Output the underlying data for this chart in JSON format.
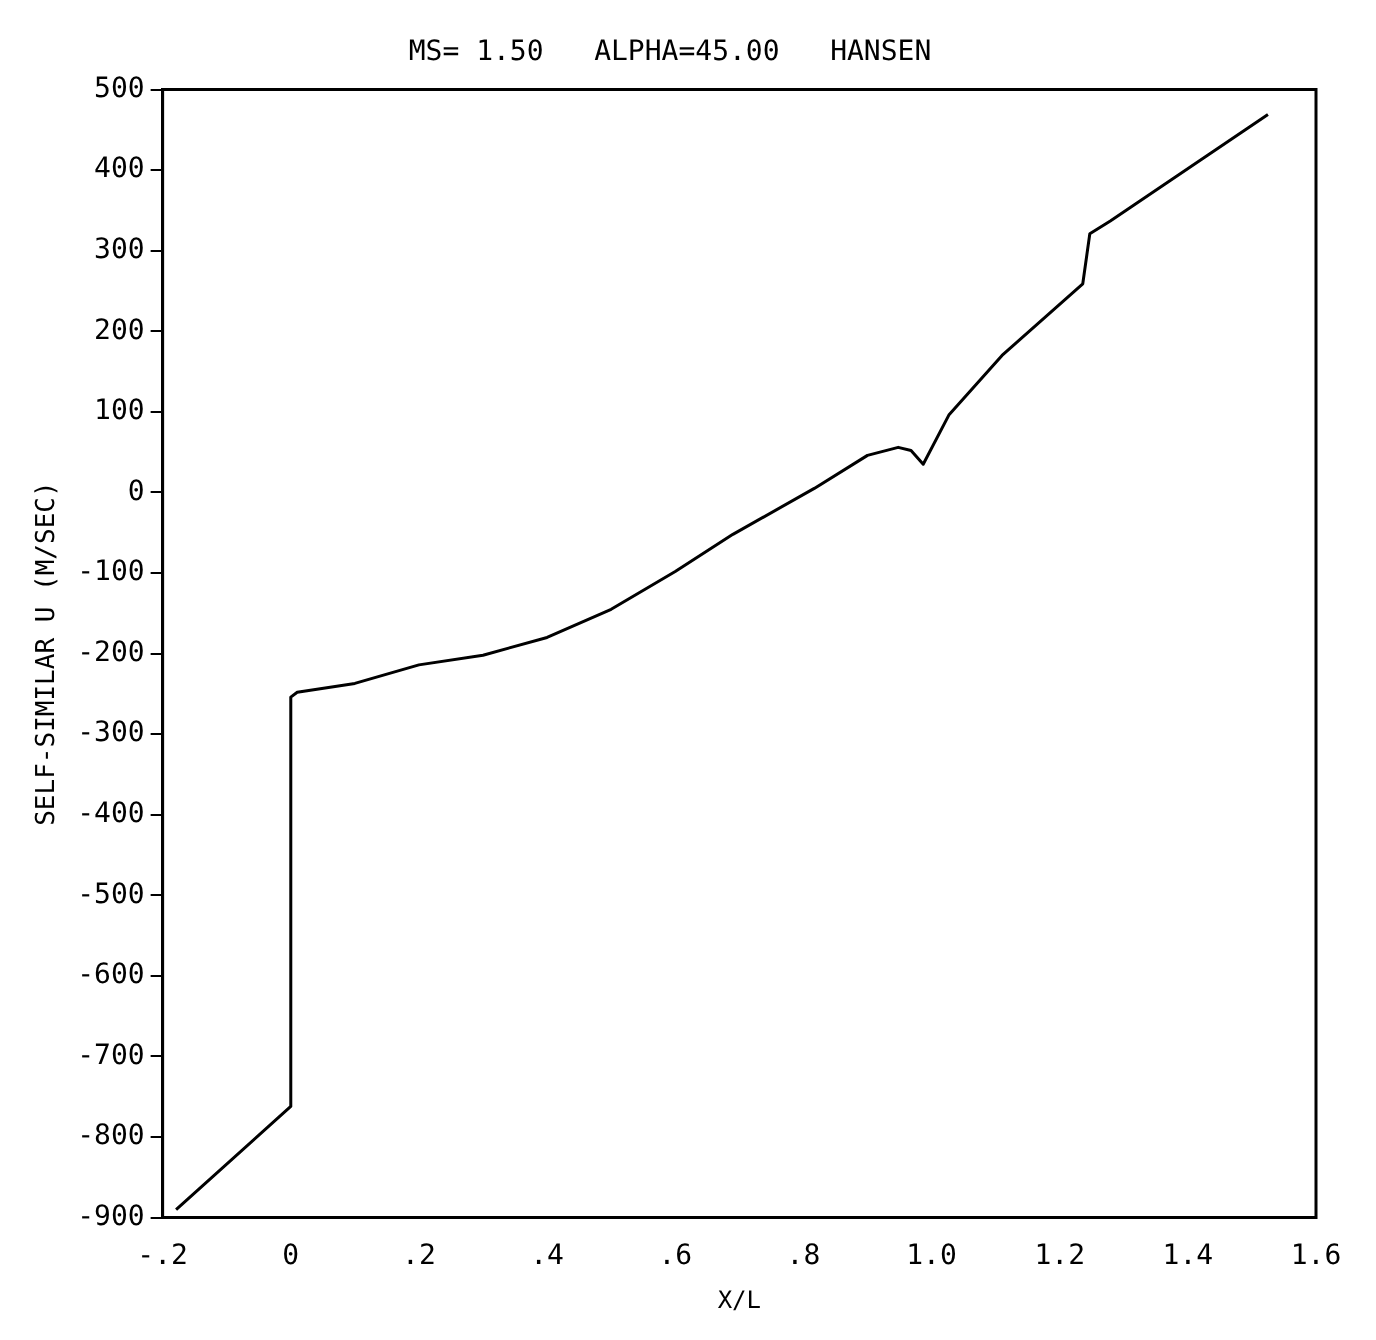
{
  "chart_data": {
    "type": "line",
    "title": "MS= 1.50   ALPHA=45.00   HANSEN",
    "xlabel": "X/L",
    "ylabel": "SELF-SIMILAR U (M/SEC)",
    "x": [
      -0.179,
      0,
      0,
      0.01,
      0.1,
      0.2,
      0.3,
      0.4,
      0.5,
      0.6,
      0.69,
      0.817,
      0.9,
      0.948,
      0.968,
      0.987,
      1.027,
      1.11,
      1.236,
      1.247,
      1.279,
      1.525
    ],
    "series": [
      {
        "color": "#000000",
        "values": [
          -890,
          -762,
          -254,
          -248,
          -237,
          -214,
          -202,
          -180,
          -145,
          -98,
          -52,
          5,
          46,
          56,
          52,
          35,
          96,
          170,
          259,
          321,
          337,
          469
        ]
      }
    ],
    "xlim": [
      -0.2,
      1.6
    ],
    "xticks": [
      {
        "value": -0.2,
        "label": "-.2"
      },
      0,
      {
        "value": 0.2,
        "label": ".2"
      },
      {
        "value": 0.4,
        "label": ".4"
      },
      {
        "value": 0.6,
        "label": ".6"
      },
      {
        "value": 0.8,
        "label": ".8"
      },
      {
        "value": 1.0,
        "label": "1.0"
      },
      {
        "value": 1.2,
        "label": "1.2"
      },
      {
        "value": 1.4,
        "label": "1.4"
      },
      {
        "value": 1.6,
        "label": "1.6"
      }
    ],
    "ylim": [
      -900,
      500
    ],
    "yticks": [
      -900,
      -800,
      -700,
      -600,
      -500,
      -400,
      -300,
      -200,
      -100,
      0,
      100,
      200,
      300,
      400,
      500
    ],
    "grid": false,
    "legend": false,
    "marker": "none",
    "line_style": "solid"
  }
}
